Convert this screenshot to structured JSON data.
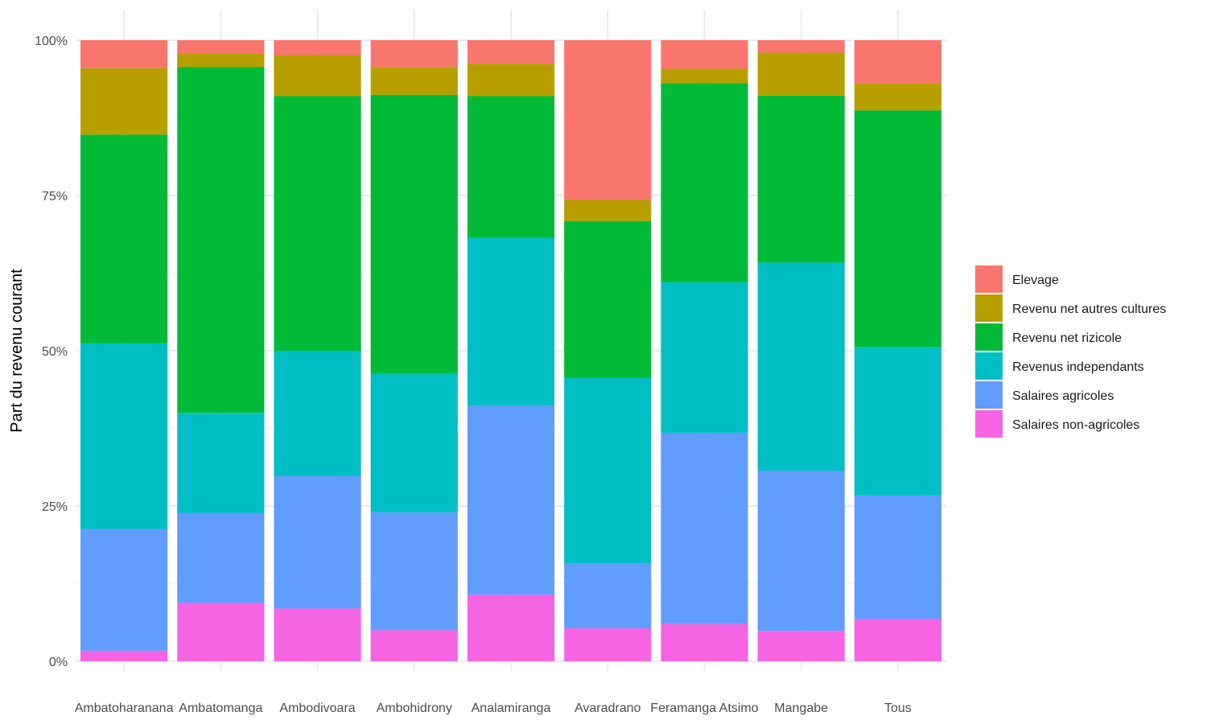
{
  "chart_data": {
    "type": "bar",
    "stacked": true,
    "percent": true,
    "title": "",
    "xlabel": "",
    "ylabel": "Part du revenu courant",
    "ylim": [
      0,
      1
    ],
    "yticks": [
      0,
      0.25,
      0.5,
      0.75,
      1.0
    ],
    "ytick_labels": [
      "0%",
      "25%",
      "50%",
      "75%",
      "100%"
    ],
    "grid": true,
    "legend_position": "right",
    "categories": [
      "Ambatoharanana",
      "Ambatomanga",
      "Ambodivoara",
      "Ambohidrony",
      "Analamiranga",
      "Avaradrano",
      "Feramanga Atsimo",
      "Mangabe",
      "Tous"
    ],
    "series": [
      {
        "name": "Salaires non-agricoles",
        "color": "#F564E3",
        "values": [
          0.017,
          0.094,
          0.085,
          0.05,
          0.107,
          0.053,
          0.06,
          0.049,
          0.068
        ]
      },
      {
        "name": "Salaires agricoles",
        "color": "#619CFF",
        "values": [
          0.196,
          0.145,
          0.213,
          0.19,
          0.305,
          0.105,
          0.308,
          0.258,
          0.199
        ]
      },
      {
        "name": "Revenus independants",
        "color": "#00BFC4",
        "values": [
          0.299,
          0.161,
          0.202,
          0.223,
          0.27,
          0.298,
          0.242,
          0.335,
          0.239
        ]
      },
      {
        "name": "Revenu net rizicole",
        "color": "#00BA38",
        "values": [
          0.336,
          0.557,
          0.41,
          0.449,
          0.228,
          0.253,
          0.321,
          0.269,
          0.381
        ]
      },
      {
        "name": "Revenu net autres cultures",
        "color": "#B79F00",
        "values": [
          0.107,
          0.021,
          0.066,
          0.045,
          0.052,
          0.034,
          0.023,
          0.069,
          0.044
        ]
      },
      {
        "name": "Elevage",
        "color": "#F8766D",
        "values": [
          0.045,
          0.022,
          0.024,
          0.043,
          0.038,
          0.257,
          0.046,
          0.02,
          0.069
        ]
      }
    ],
    "legend_order": [
      "Elevage",
      "Revenu net autres cultures",
      "Revenu net rizicole",
      "Revenus independants",
      "Salaires agricoles",
      "Salaires non-agricoles"
    ]
  }
}
